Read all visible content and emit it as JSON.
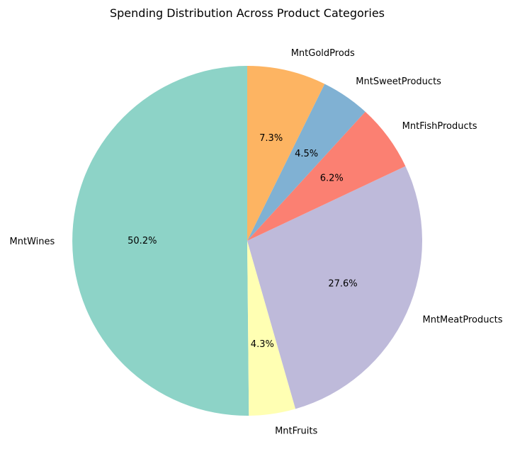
{
  "chart_data": {
    "type": "pie",
    "title": "Spending Distribution Across Product Categories",
    "start_angle_deg": 90,
    "direction": "counterclockwise",
    "slices": [
      {
        "label": "MntWines",
        "value": 50.2,
        "pct_label": "50.2%",
        "color": "#8dd3c7"
      },
      {
        "label": "MntFruits",
        "value": 4.3,
        "pct_label": "4.3%",
        "color": "#ffffb3"
      },
      {
        "label": "MntMeatProducts",
        "value": 27.6,
        "pct_label": "27.6%",
        "color": "#bebada"
      },
      {
        "label": "MntFishProducts",
        "value": 6.2,
        "pct_label": "6.2%",
        "color": "#fb8072"
      },
      {
        "label": "MntSweetProducts",
        "value": 4.5,
        "pct_label": "4.5%",
        "color": "#80b1d3"
      },
      {
        "label": "MntGoldProds",
        "value": 7.3,
        "pct_label": "7.3%",
        "color": "#fdb462"
      }
    ]
  }
}
